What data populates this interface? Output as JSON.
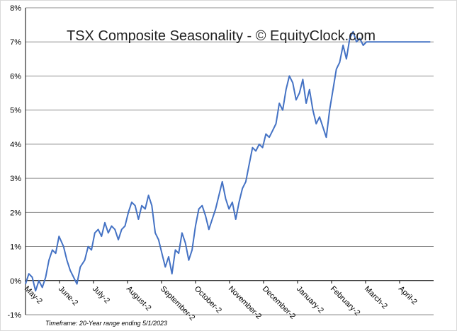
{
  "chart_data": {
    "type": "line",
    "title": "TSX Composite Seasonality - © EquityClock.com",
    "note": "Timeframe:   20-Year range ending 5/1/2023",
    "xlabel": "",
    "ylabel": "",
    "y_tick_labels": [
      "-1%",
      "0%",
      "1%",
      "2%",
      "3%",
      "4%",
      "5%",
      "6%",
      "7%",
      "8%"
    ],
    "ylim": [
      -1,
      8
    ],
    "x_tick_labels": [
      "May-2",
      "June-2",
      "July-2",
      "August-2",
      "September-2",
      "October-2",
      "November-2",
      "December-2",
      "January-2",
      "February-2",
      "March-2",
      "April-2"
    ],
    "grid": true,
    "line_color": "#4472c4",
    "series": [
      {
        "x_day": [
          0,
          3,
          6,
          9,
          12,
          15,
          18,
          21,
          24,
          27,
          30,
          34,
          37,
          40,
          43,
          46,
          49,
          53,
          56,
          59,
          62,
          65,
          68,
          71,
          74,
          77,
          80,
          83,
          86,
          89,
          92,
          95,
          98,
          101,
          104,
          107,
          110,
          113,
          116,
          119,
          122,
          125,
          128,
          131,
          134,
          137,
          140,
          143,
          146,
          149,
          152,
          155,
          158,
          161,
          164,
          167,
          170,
          173,
          176,
          179,
          182,
          185,
          188,
          191,
          194,
          197,
          200,
          203,
          206,
          209,
          212,
          215,
          218,
          221,
          224,
          227,
          230,
          233,
          236,
          239,
          242,
          245,
          248,
          251,
          254,
          257,
          260,
          263,
          266,
          269,
          272,
          275,
          278,
          281,
          284,
          287,
          290,
          293,
          296,
          299,
          302,
          305,
          308,
          311,
          314,
          317,
          320,
          323,
          326,
          329,
          332,
          335,
          338,
          341,
          344,
          347,
          350,
          353,
          356,
          359,
          362
        ],
        "values": [
          -0.1,
          0.2,
          0.1,
          -0.3,
          0.0,
          -0.2,
          0.1,
          0.6,
          0.9,
          0.8,
          1.3,
          1.0,
          0.6,
          0.3,
          0.1,
          -0.1,
          0.4,
          0.6,
          1.0,
          0.9,
          1.4,
          1.5,
          1.3,
          1.7,
          1.4,
          1.6,
          1.5,
          1.2,
          1.5,
          1.6,
          2.0,
          2.3,
          2.2,
          1.8,
          2.2,
          2.1,
          2.5,
          2.2,
          1.4,
          1.2,
          0.8,
          0.4,
          0.7,
          0.2,
          0.9,
          0.8,
          1.4,
          1.1,
          0.6,
          0.9,
          1.6,
          2.1,
          2.2,
          1.9,
          1.5,
          1.8,
          2.1,
          2.5,
          2.9,
          2.4,
          2.1,
          2.3,
          1.8,
          2.3,
          2.7,
          2.9,
          3.4,
          3.9,
          3.8,
          4.0,
          3.9,
          4.3,
          4.2,
          4.4,
          4.6,
          5.2,
          5.0,
          5.6,
          6.0,
          5.8,
          5.3,
          5.5,
          5.9,
          5.2,
          5.6,
          5.0,
          4.6,
          4.8,
          4.5,
          4.2,
          5.0,
          5.6,
          6.2,
          6.4,
          6.9,
          6.5,
          7.1,
          7.3,
          7.0,
          7.1,
          6.9,
          7.0,
          7.0,
          7.0,
          7.0,
          7.0,
          7.0,
          7.0,
          7.0,
          7.0,
          7.0,
          7.0,
          7.0,
          7.0,
          7.0,
          7.0,
          7.0,
          7.0,
          7.0,
          7.0,
          7.0
        ]
      }
    ]
  }
}
